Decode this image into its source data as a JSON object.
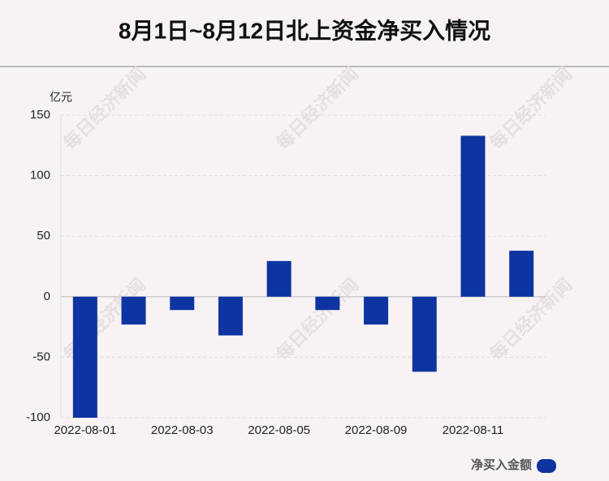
{
  "chart_data": {
    "type": "bar",
    "title": "8月1日~8月12日北上资金净买入情况",
    "y_unit": "亿元",
    "categories": [
      "2022-08-01",
      null,
      "2022-08-03",
      null,
      "2022-08-05",
      null,
      "2022-08-09",
      null,
      "2022-08-11",
      null
    ],
    "series": [
      {
        "name": "净买入金额",
        "color": "#0d34a0",
        "values": [
          -100,
          -23,
          -11,
          -32,
          29.5,
          -11,
          -23,
          -62,
          133,
          38
        ]
      }
    ],
    "ylim": [
      -100,
      150
    ],
    "yticks": [
      -100,
      -50,
      0,
      50,
      100,
      150
    ],
    "grid": true,
    "legend": "bottom-right",
    "watermark": "每日经济新闻"
  }
}
